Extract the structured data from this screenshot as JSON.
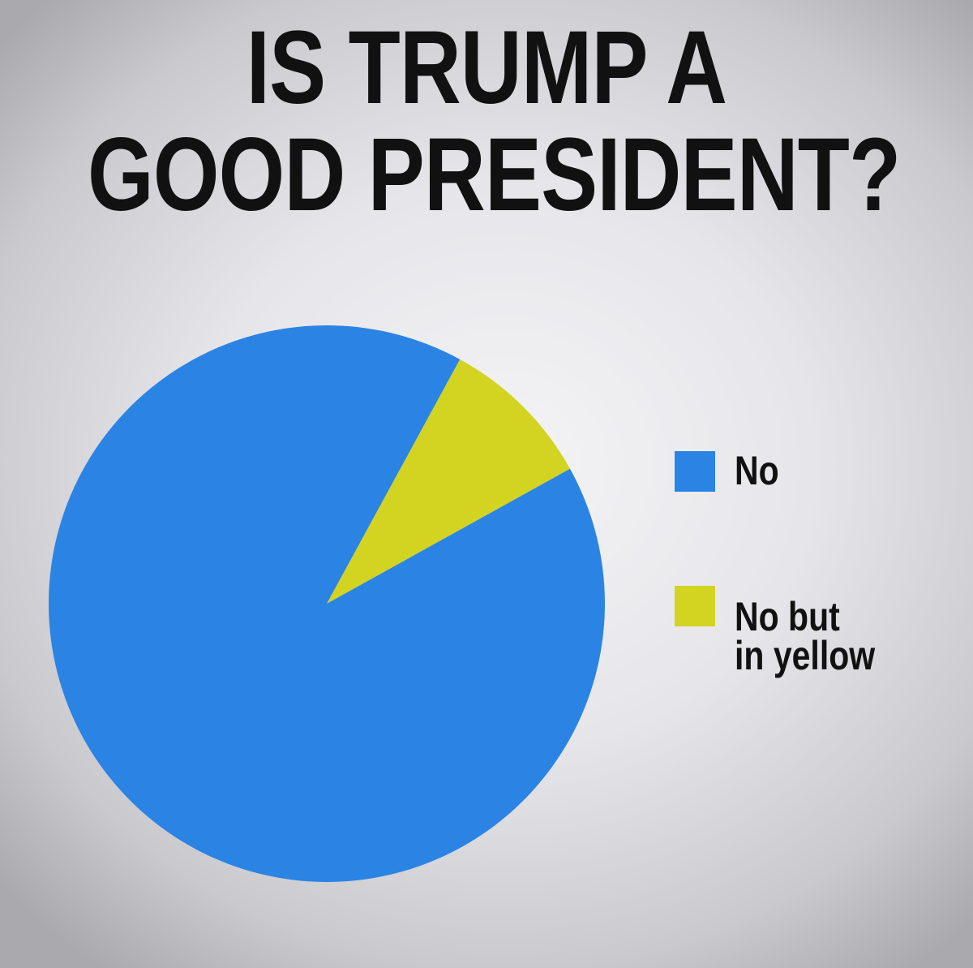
{
  "chart_data": {
    "type": "pie",
    "title_lines": [
      "IS TRUMP A",
      "GOOD PRESIDENT?"
    ],
    "slices": [
      {
        "label": "No",
        "value": 91,
        "color": "#2b84e4"
      },
      {
        "label": "No but in yellow",
        "value": 9,
        "color": "#d3d422"
      }
    ],
    "legend": {
      "placement": "right",
      "entries": [
        {
          "lines": [
            "No"
          ],
          "color": "#2b84e4"
        },
        {
          "lines": [
            "No but",
            "in yellow"
          ],
          "color": "#d3d422"
        }
      ]
    }
  }
}
